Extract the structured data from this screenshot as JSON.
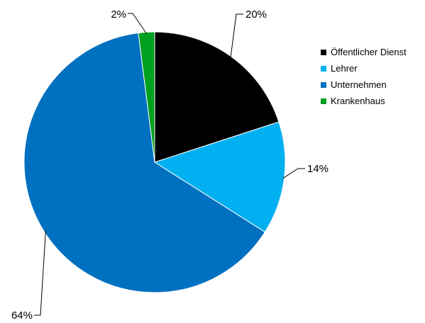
{
  "chart_data": {
    "type": "pie",
    "slices": [
      {
        "label": "Öffentlicher Dienst",
        "value": 20,
        "value_label": "20%",
        "color": "#000000"
      },
      {
        "label": "Lehrer",
        "value": 14,
        "value_label": "14%",
        "color": "#00b0f0"
      },
      {
        "label": "Unternehmen",
        "value": 64,
        "value_label": "64%",
        "color": "#0070c0"
      },
      {
        "label": "Krankenhaus",
        "value": 2,
        "value_label": "2%",
        "color": "#00a020"
      }
    ],
    "legend_position": "right",
    "start_angle": "12 o'clock",
    "direction": "clockwise"
  }
}
